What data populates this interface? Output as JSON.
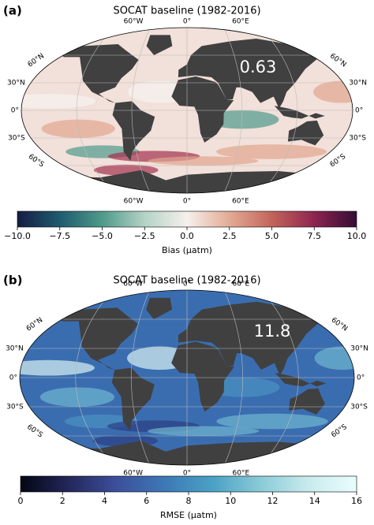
{
  "panels": [
    {
      "label": "(a)",
      "title": "SOCAT baseline (1982-2016)",
      "annotation": "0.63",
      "top_lon_labels": [
        "60°W",
        "0°",
        "60°E"
      ],
      "bottom_lon_labels": [
        "60°W",
        "0°",
        "60°E"
      ],
      "left_lat_labels": [
        "60°N",
        "30°N",
        "0°",
        "30°S",
        "60°S"
      ],
      "right_lat_labels": [
        "60°N",
        "30°N",
        "0°",
        "30°S",
        "60°S"
      ],
      "ocean_color": "#f2e0da",
      "patch_colors": [
        "#e3a58f",
        "#f7f2ef",
        "#a3304f",
        "#4f9a8a"
      ],
      "colorbar": {
        "label": "Bias (μatm)",
        "lim": [
          -10,
          10
        ],
        "ticks": [
          {
            "value": -10,
            "label": "−10.0"
          },
          {
            "value": -7.5,
            "label": "−7.5"
          },
          {
            "value": -5,
            "label": "−5.0"
          },
          {
            "value": -2.5,
            "label": "−2.5"
          },
          {
            "value": 0,
            "label": "0.0"
          },
          {
            "value": 2.5,
            "label": "2.5"
          },
          {
            "value": 5,
            "label": "5.0"
          },
          {
            "value": 7.5,
            "label": "7.5"
          },
          {
            "value": 10,
            "label": "10.0"
          }
        ],
        "colors": [
          "#151d44",
          "#1f5b6f",
          "#4f9a8a",
          "#b4d3c6",
          "#f6f0ec",
          "#e2ab95",
          "#c3645a",
          "#8d2550",
          "#340d35"
        ]
      }
    },
    {
      "label": "(b)",
      "title": "SOCAT baseline (1982-2016)",
      "annotation": "11.8",
      "top_lon_labels": [
        "60°W",
        "0°",
        "60°E"
      ],
      "bottom_lon_labels": [
        "60°W",
        "0°",
        "60°E"
      ],
      "left_lat_labels": [
        "60°N",
        "30°N",
        "0°",
        "30°S",
        "60°S"
      ],
      "right_lat_labels": [
        "60°N",
        "30°N",
        "0°",
        "30°S",
        "60°S"
      ],
      "ocean_color": "#3a6db0",
      "patch_colors": [
        "#6fb6d0",
        "#d9f2f3",
        "#2c3f84",
        "#4a93c3"
      ],
      "colorbar": {
        "label": "RMSE (μatm)",
        "lim": [
          0,
          16
        ],
        "ticks": [
          0,
          2,
          4,
          6,
          8,
          10,
          12,
          14,
          16
        ],
        "colors": [
          "#040613",
          "#23275a",
          "#3c4f9c",
          "#3d78b6",
          "#4ba1c5",
          "#8acbd8",
          "#c9ebee",
          "#eafdfd"
        ]
      }
    }
  ]
}
